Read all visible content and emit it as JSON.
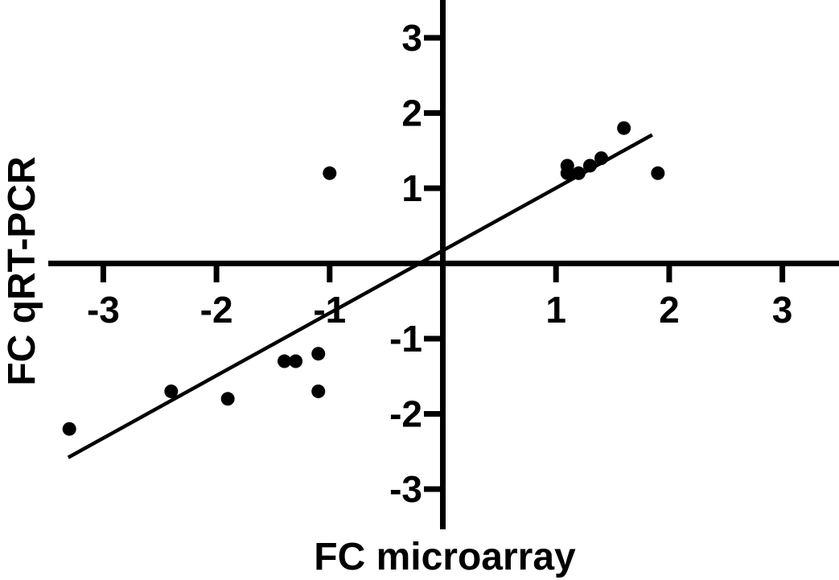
{
  "figure": {
    "background": "#ffffff",
    "ink_color": "#000000"
  },
  "chart_data": {
    "type": "scatter",
    "title": "",
    "xlabel": "FC microarray",
    "ylabel": "FC qRT-PCR",
    "xlim": [
      -3.5,
      3.5
    ],
    "ylim": [
      -3.5,
      3.5
    ],
    "x_ticks": [
      -3,
      -2,
      -1,
      1,
      2,
      3
    ],
    "y_ticks": [
      3,
      2,
      1,
      -1,
      -2,
      -3
    ],
    "grid": false,
    "legend": "none",
    "marker": {
      "shape": "circle",
      "color": "#000000",
      "radius_px": 8.5
    },
    "points": [
      {
        "x": -3.3,
        "y": -2.2
      },
      {
        "x": -2.4,
        "y": -1.7
      },
      {
        "x": -1.9,
        "y": -1.8
      },
      {
        "x": -1.4,
        "y": -1.3
      },
      {
        "x": -1.3,
        "y": -1.3
      },
      {
        "x": -1.1,
        "y": -1.2
      },
      {
        "x": -1.1,
        "y": -1.7
      },
      {
        "x": -1.0,
        "y": 1.2
      },
      {
        "x": 1.1,
        "y": 1.3
      },
      {
        "x": 1.1,
        "y": 1.2
      },
      {
        "x": 1.2,
        "y": 1.2
      },
      {
        "x": 1.3,
        "y": 1.3
      },
      {
        "x": 1.4,
        "y": 1.4
      },
      {
        "x": 1.6,
        "y": 1.8
      },
      {
        "x": 1.9,
        "y": 1.2
      }
    ],
    "trendline": {
      "x1": -3.31,
      "y1": -2.58,
      "x2": 1.85,
      "y2": 1.71
    }
  }
}
